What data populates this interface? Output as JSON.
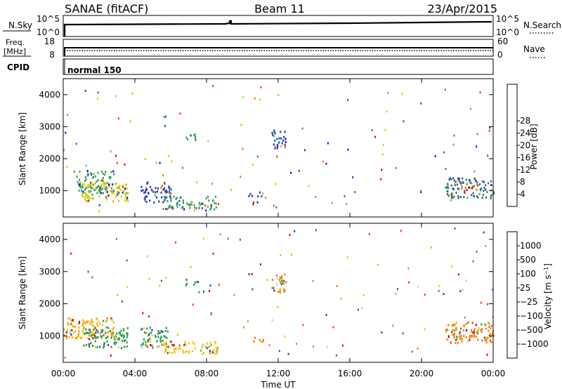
{
  "header": {
    "station": "SANAE (fitACF)",
    "beam": "Beam 11",
    "date": "23/Apr/2015"
  },
  "top_panels": {
    "nsky_label": "N.Sky",
    "nsky_ticks": [
      "10^5",
      "10^0"
    ],
    "nsearch_label": "N.Search",
    "nsearch_ticks": [
      "10^5",
      "10^0"
    ],
    "freq_label": "Freq.",
    "freq_unit": "[MHz]",
    "freq_ticks": [
      "18",
      "8"
    ],
    "nave_label": "Nave",
    "nave_ticks": [
      "60",
      "0"
    ],
    "cpid_label": "CPID",
    "cpid_value": "normal 150"
  },
  "chart_data": [
    {
      "type": "heatmap",
      "name": "power",
      "ylabel": "Slant Range [km]",
      "ylim": [
        180,
        4500
      ],
      "yticks": [
        1000,
        2000,
        3000,
        4000
      ],
      "xlim": [
        0,
        24
      ],
      "colorbar_label": "Power [dB]",
      "colorbar_ticks": [
        "4",
        "8",
        "12",
        "16",
        "20",
        "24",
        "28"
      ],
      "colorbar_colors": [
        "#1a00ff",
        "#1f3fc8",
        "#2d6e8c",
        "#3ba05a",
        "#55c83c",
        "#c8d200",
        "#ffaa00",
        "#ff7000",
        "#ff3000",
        "#e00000"
      ],
      "regions": [
        {
          "t0": 0.7,
          "t1": 2.8,
          "r0": 950,
          "r1": 1650,
          "color": "#3ba05a"
        },
        {
          "t0": 1.0,
          "t1": 3.6,
          "r0": 700,
          "r1": 1300,
          "color": "#c8d200"
        },
        {
          "t0": 4.3,
          "t1": 6.0,
          "r0": 650,
          "r1": 1300,
          "color": "#1f3fc8"
        },
        {
          "t0": 5.5,
          "t1": 8.6,
          "r0": 450,
          "r1": 850,
          "color": "#3ba05a"
        },
        {
          "t0": 10.3,
          "t1": 11.2,
          "r0": 850,
          "r1": 980,
          "color": "#1f3fc8"
        },
        {
          "t0": 11.6,
          "t1": 12.4,
          "r0": 2350,
          "r1": 2950,
          "color": "#1f3fc8"
        },
        {
          "t0": 6.8,
          "t1": 7.5,
          "r0": 2600,
          "r1": 2800,
          "color": "#3ba05a"
        },
        {
          "t0": 21.3,
          "t1": 24.0,
          "r0": 800,
          "r1": 1450,
          "color": "#2d6e8c"
        },
        {
          "t0": 22.2,
          "t1": 23.2,
          "r0": 1050,
          "r1": 1250,
          "color": "#ff7000"
        }
      ]
    },
    {
      "type": "heatmap",
      "name": "velocity",
      "ylabel": "Slant Range [km]",
      "ylim": [
        180,
        4500
      ],
      "yticks": [
        1000,
        2000,
        3000,
        4000
      ],
      "xlim": [
        0,
        24
      ],
      "xticks": [
        "00:00",
        "04:00",
        "08:00",
        "12:00",
        "16:00",
        "20:00",
        "00:00"
      ],
      "xlabel": "Time UT",
      "colorbar_label": "Velocity [m s^-1]",
      "colorbar_ticks": [
        "1000",
        "500",
        "100",
        "25",
        "−25",
        "−100",
        "−500",
        "−1000"
      ],
      "colorbar_colors": [
        "#1a3fc8",
        "#1f6e8c",
        "#2d9a4a",
        "#5ac83c",
        "#c8c8c8",
        "#f5c400",
        "#ffaa00",
        "#ff7800",
        "#ff3c00",
        "#e00000"
      ],
      "regions": [
        {
          "t0": 0.0,
          "t1": 2.8,
          "r0": 950,
          "r1": 1600,
          "color": "#ffaa00"
        },
        {
          "t0": 1.0,
          "t1": 3.6,
          "r0": 650,
          "r1": 1300,
          "color": "#2d9a4a"
        },
        {
          "t0": 4.3,
          "t1": 6.0,
          "r0": 650,
          "r1": 1300,
          "color": "#2d9a4a"
        },
        {
          "t0": 5.5,
          "t1": 8.6,
          "r0": 450,
          "r1": 850,
          "color": "#f5c400"
        },
        {
          "t0": 10.3,
          "t1": 11.2,
          "r0": 850,
          "r1": 980,
          "color": "#ff7800"
        },
        {
          "t0": 11.6,
          "t1": 12.4,
          "r0": 2350,
          "r1": 2950,
          "color": "#ff7800"
        },
        {
          "t0": 6.8,
          "t1": 7.5,
          "r0": 2600,
          "r1": 2800,
          "color": "#2d9a4a"
        },
        {
          "t0": 21.3,
          "t1": 24.0,
          "r0": 800,
          "r1": 1450,
          "color": "#ff7800"
        }
      ]
    }
  ]
}
